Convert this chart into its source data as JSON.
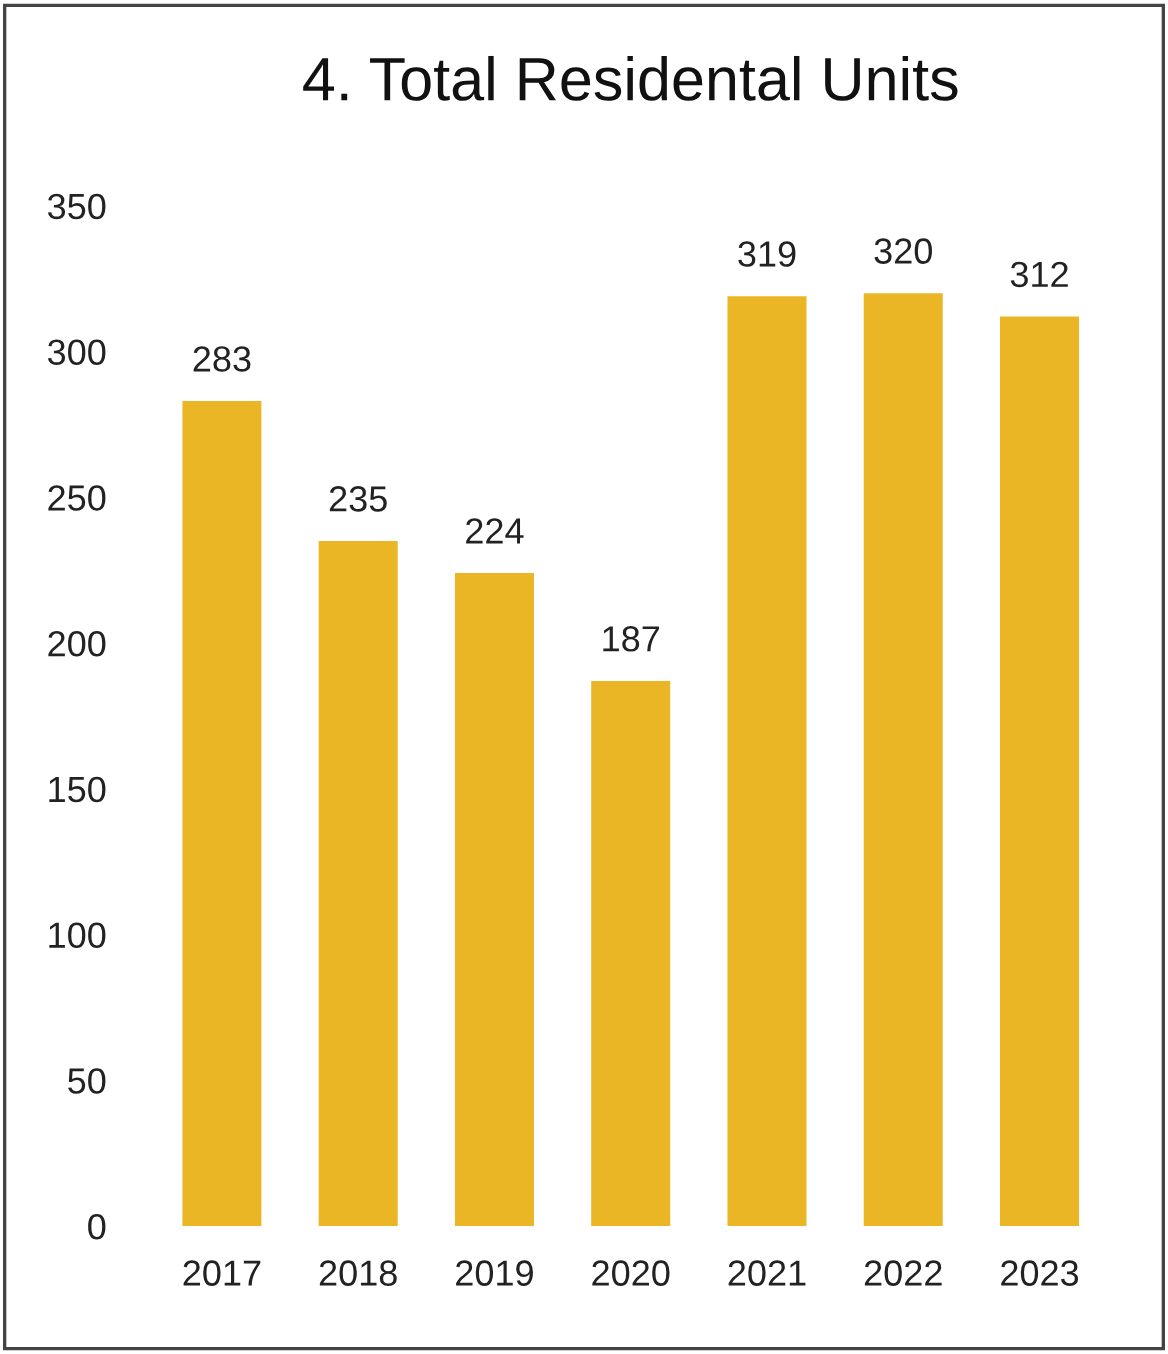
{
  "chart_data": {
    "type": "bar",
    "title": "4. Total Residental Units",
    "categories": [
      "2017",
      "2018",
      "2019",
      "2020",
      "2021",
      "2022",
      "2023"
    ],
    "values": [
      283,
      235,
      224,
      187,
      319,
      320,
      312
    ],
    "color": "#ebb625",
    "ylim": [
      0,
      350
    ],
    "yticks": [
      0,
      50,
      100,
      150,
      200,
      250,
      300,
      350
    ],
    "grid": false,
    "data_labels": true
  }
}
